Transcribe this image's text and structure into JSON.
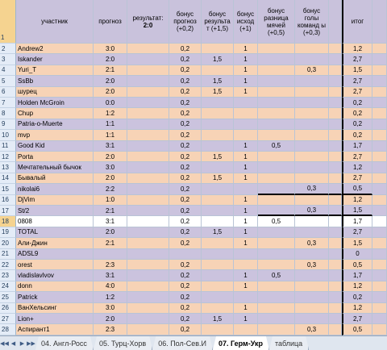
{
  "headers": {
    "participant": "участник",
    "forecast": "прогноз",
    "result_label": "результат:",
    "result_value": "2:0",
    "bonus_forecast": "бонус прогноз (+0,2)",
    "bonus_result": "бонус результа т (+1,5)",
    "bonus_outcome": "бонус исход (+1)",
    "bonus_diff": "бонус разница мячей (+0,5)",
    "bonus_goals": "бонус голы команд ы (+0,3)",
    "total": "итог"
  },
  "rows": [
    {
      "n": "2",
      "name": "Andrew2",
      "pred": "3:0",
      "bf": "0,2",
      "br": "",
      "bo": "1",
      "bd": "",
      "bg": "",
      "tot": "1,2"
    },
    {
      "n": "3",
      "name": "Iskander",
      "pred": "2:0",
      "bf": "0,2",
      "br": "1,5",
      "bo": "1",
      "bd": "",
      "bg": "",
      "tot": "2,7"
    },
    {
      "n": "4",
      "name": "Yuri_T",
      "pred": "2:1",
      "bf": "0,2",
      "br": "",
      "bo": "1",
      "bd": "",
      "bg": "0,3",
      "tot": "1,5"
    },
    {
      "n": "5",
      "name": "SsBb",
      "pred": "2:0",
      "bf": "0,2",
      "br": "1,5",
      "bo": "1",
      "bd": "",
      "bg": "",
      "tot": "2,7"
    },
    {
      "n": "6",
      "name": "шурец",
      "pred": "2:0",
      "bf": "0,2",
      "br": "1,5",
      "bo": "1",
      "bd": "",
      "bg": "",
      "tot": "2,7"
    },
    {
      "n": "7",
      "name": "Holden McGroin",
      "pred": "0:0",
      "bf": "0,2",
      "br": "",
      "bo": "",
      "bd": "",
      "bg": "",
      "tot": "0,2"
    },
    {
      "n": "8",
      "name": "Chup",
      "pred": "1:2",
      "bf": "0,2",
      "br": "",
      "bo": "",
      "bd": "",
      "bg": "",
      "tot": "0,2"
    },
    {
      "n": "9",
      "name": "Patria-o-Muerte",
      "pred": "1:1",
      "bf": "0,2",
      "br": "",
      "bo": "",
      "bd": "",
      "bg": "",
      "tot": "0,2"
    },
    {
      "n": "10",
      "name": "mvp",
      "pred": "1:1",
      "bf": "0,2",
      "br": "",
      "bo": "",
      "bd": "",
      "bg": "",
      "tot": "0,2"
    },
    {
      "n": "11",
      "name": "Good Kid",
      "pred": "3:1",
      "bf": "0,2",
      "br": "",
      "bo": "1",
      "bd": "0,5",
      "bg": "",
      "tot": "1,7"
    },
    {
      "n": "12",
      "name": "Porta",
      "pred": "2:0",
      "bf": "0,2",
      "br": "1,5",
      "bo": "1",
      "bd": "",
      "bg": "",
      "tot": "2,7"
    },
    {
      "n": "13",
      "name": "Мечтательный бычок",
      "pred": "3:0",
      "bf": "0,2",
      "br": "",
      "bo": "1",
      "bd": "",
      "bg": "",
      "tot": "1,2"
    },
    {
      "n": "14",
      "name": "Бывалый",
      "pred": "2:0",
      "bf": "0,2",
      "br": "1,5",
      "bo": "1",
      "bd": "",
      "bg": "",
      "tot": "2,7"
    },
    {
      "n": "15",
      "name": "nikolai6",
      "pred": "2:2",
      "bf": "0,2",
      "br": "",
      "bo": "",
      "bd": "",
      "bg": "0,3",
      "tot": "0,5"
    },
    {
      "n": "16",
      "name": "DjVim",
      "pred": "1:0",
      "bf": "0,2",
      "br": "",
      "bo": "1",
      "bd": "",
      "bg": "",
      "tot": "1,2"
    },
    {
      "n": "17",
      "name": "St/2",
      "pred": "2:1",
      "bf": "0,2",
      "br": "",
      "bo": "1",
      "bd": "",
      "bg": "0,3",
      "tot": "1,5"
    },
    {
      "n": "18",
      "name": "0808",
      "pred": "3:1",
      "bf": "0,2",
      "br": "",
      "bo": "1",
      "bd": "0,5",
      "bg": "",
      "tot": "1,7"
    },
    {
      "n": "19",
      "name": "TOTAL",
      "pred": "2:0",
      "bf": "0,2",
      "br": "1,5",
      "bo": "1",
      "bd": "",
      "bg": "",
      "tot": "2,7"
    },
    {
      "n": "20",
      "name": "Али-Джин",
      "pred": "2:1",
      "bf": "0,2",
      "br": "",
      "bo": "1",
      "bd": "",
      "bg": "0,3",
      "tot": "1,5"
    },
    {
      "n": "21",
      "name": "ADSL9",
      "pred": "",
      "bf": "",
      "br": "",
      "bo": "",
      "bd": "",
      "bg": "",
      "tot": "0"
    },
    {
      "n": "22",
      "name": "orest",
      "pred": "2:3",
      "bf": "0,2",
      "br": "",
      "bo": "",
      "bd": "",
      "bg": "0,3",
      "tot": "0,5"
    },
    {
      "n": "23",
      "name": "vladislavlvov",
      "pred": "3:1",
      "bf": "0,2",
      "br": "",
      "bo": "1",
      "bd": "0,5",
      "bg": "",
      "tot": "1,7"
    },
    {
      "n": "24",
      "name": "donn",
      "pred": "4:0",
      "bf": "0,2",
      "br": "",
      "bo": "1",
      "bd": "",
      "bg": "",
      "tot": "1,2"
    },
    {
      "n": "25",
      "name": "Patrick",
      "pred": "1:2",
      "bf": "0,2",
      "br": "",
      "bo": "",
      "bd": "",
      "bg": "",
      "tot": "0,2"
    },
    {
      "n": "26",
      "name": "ВанХельсинг",
      "pred": "3:0",
      "bf": "0,2",
      "br": "",
      "bo": "1",
      "bd": "",
      "bg": "",
      "tot": "1,2"
    },
    {
      "n": "27",
      "name": "Lion+",
      "pred": "2:0",
      "bf": "0,2",
      "br": "1,5",
      "bo": "1",
      "bd": "",
      "bg": "",
      "tot": "2,7"
    },
    {
      "n": "28",
      "name": "Аспирант1",
      "pred": "2:3",
      "bf": "0,2",
      "br": "",
      "bo": "",
      "bd": "",
      "bg": "0,3",
      "tot": "0,5"
    }
  ],
  "tabs": [
    {
      "label": "04. Англ-Росс",
      "active": false
    },
    {
      "label": "05. Турц-Хорв",
      "active": false
    },
    {
      "label": "06. Пол-Сев.И",
      "active": false
    },
    {
      "label": "07. Герм-Укр",
      "active": true
    },
    {
      "label": "таблица",
      "active": false
    }
  ],
  "nav": {
    "first": "◀◀",
    "prev": "◀",
    "next": "▶",
    "last": "▶▶"
  },
  "colors": {
    "peach": "#f7d3b6",
    "lavender": "#cbc3de",
    "header": "#c9c2dc",
    "rownum": "#e4ecf7"
  }
}
